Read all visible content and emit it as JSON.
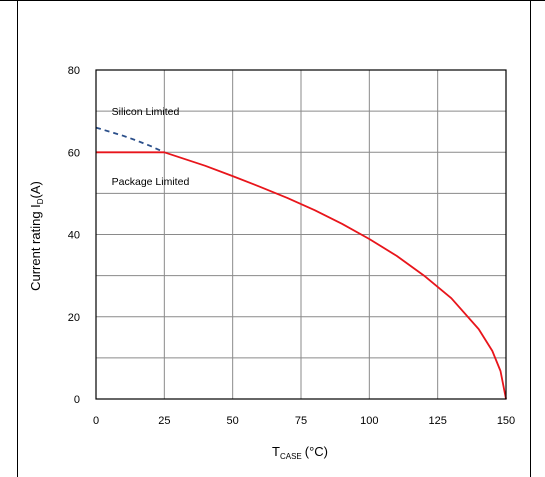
{
  "chart_data": {
    "type": "line",
    "xlabel_main": "T",
    "xlabel_sub": "CASE",
    "xlabel_unit": "(°C)",
    "ylabel_main": "Current rating I",
    "ylabel_sub": "D",
    "ylabel_unit": "(A)",
    "xlim": [
      0,
      150
    ],
    "ylim": [
      0,
      80
    ],
    "x_ticks": [
      0,
      25,
      50,
      75,
      100,
      125,
      150
    ],
    "y_ticks": [
      0,
      20,
      40,
      60,
      80
    ],
    "grid": true,
    "annotations": [
      {
        "text": "Silicon Limited",
        "x": 5,
        "y": 70
      },
      {
        "text": "Package Limited",
        "x": 5,
        "y": 53
      }
    ],
    "series": [
      {
        "style": "dashed",
        "color": "#2b4f8a",
        "x": [
          0,
          5,
          10,
          15,
          20,
          25
        ],
        "y": [
          66,
          65,
          64,
          62.8,
          61.5,
          60
        ]
      },
      {
        "style": "solid",
        "color": "#e8151b",
        "x": [
          0,
          10,
          20,
          25,
          30,
          40,
          50,
          60,
          70,
          80,
          90,
          100,
          110,
          120,
          130,
          140,
          145,
          148,
          150
        ],
        "y": [
          60,
          60,
          60,
          60,
          58.9,
          56.7,
          54.2,
          51.6,
          48.9,
          45.9,
          42.6,
          38.9,
          34.8,
          30.0,
          24.5,
          17.0,
          11.7,
          6.8,
          0
        ]
      }
    ]
  }
}
